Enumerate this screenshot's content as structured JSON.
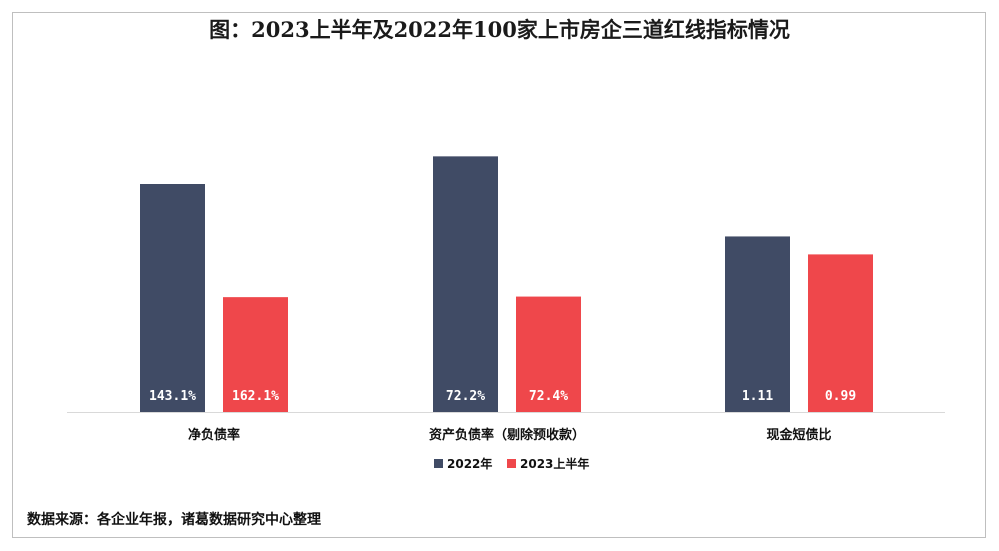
{
  "chart_data": {
    "type": "bar",
    "title": "图：2023上半年及2022年100家上市房企三道红线指标情况",
    "categories": [
      "净负债率",
      "资产负债率（剔除预收款）",
      "现金短债比"
    ],
    "series": [
      {
        "name": "2022年",
        "color": "#404b65",
        "values": [
          143.1,
          72.2,
          1.11
        ],
        "labels": [
          "143.1%",
          "72.2%",
          "1.11"
        ]
      },
      {
        "name": "2023上半年",
        "color": "#ef474b",
        "values": [
          162.1,
          72.4,
          0.99
        ],
        "labels": [
          "162.1%",
          "72.4%",
          "0.99"
        ]
      }
    ],
    "bar_heights_relative": [
      [
        0.8,
        0.403
      ],
      [
        0.897,
        0.405
      ],
      [
        0.616,
        0.553
      ]
    ],
    "legend_position": "bottom",
    "grid": false
  },
  "footer": {
    "source": "数据来源：各企业年报，诸葛数据研究中心整理"
  }
}
